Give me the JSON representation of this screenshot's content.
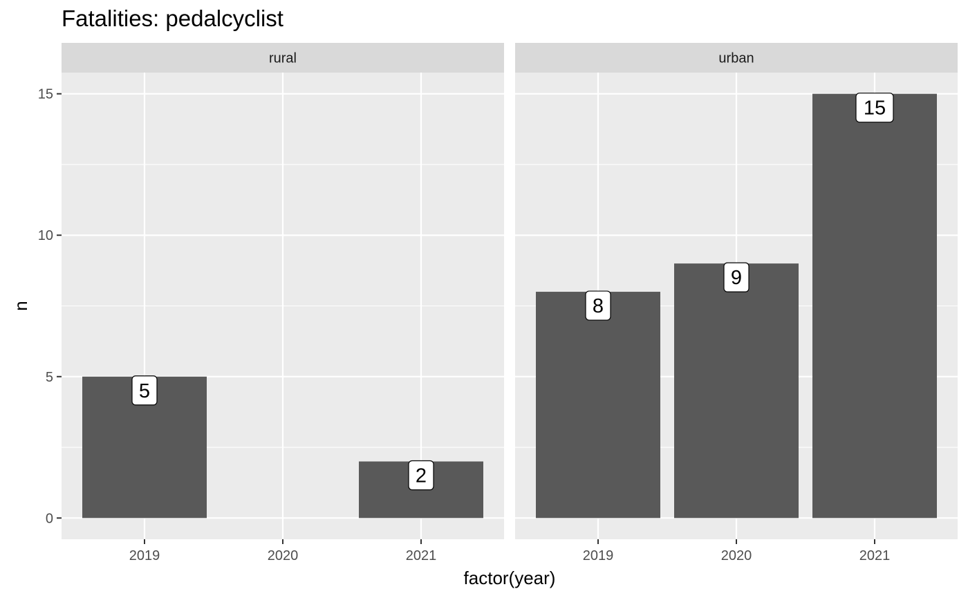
{
  "chart_data": {
    "type": "bar",
    "title": "Fatalities: pedalcyclist",
    "xlabel": "factor(year)",
    "ylabel": "n",
    "categories": [
      "2019",
      "2020",
      "2021"
    ],
    "facets": [
      {
        "name": "rural",
        "values": [
          5,
          null,
          2
        ]
      },
      {
        "name": "urban",
        "values": [
          8,
          9,
          15
        ]
      }
    ],
    "y_ticks": [
      0,
      5,
      10,
      15
    ],
    "ylim": [
      -0.75,
      15.75
    ],
    "grid": true,
    "legend": "none",
    "colors": {
      "bar": "#595959",
      "panel_bg": "#EBEBEB",
      "strip_bg": "#D9D9D9",
      "grid": "#FFFFFF",
      "axis_text": "#4D4D4D"
    }
  }
}
